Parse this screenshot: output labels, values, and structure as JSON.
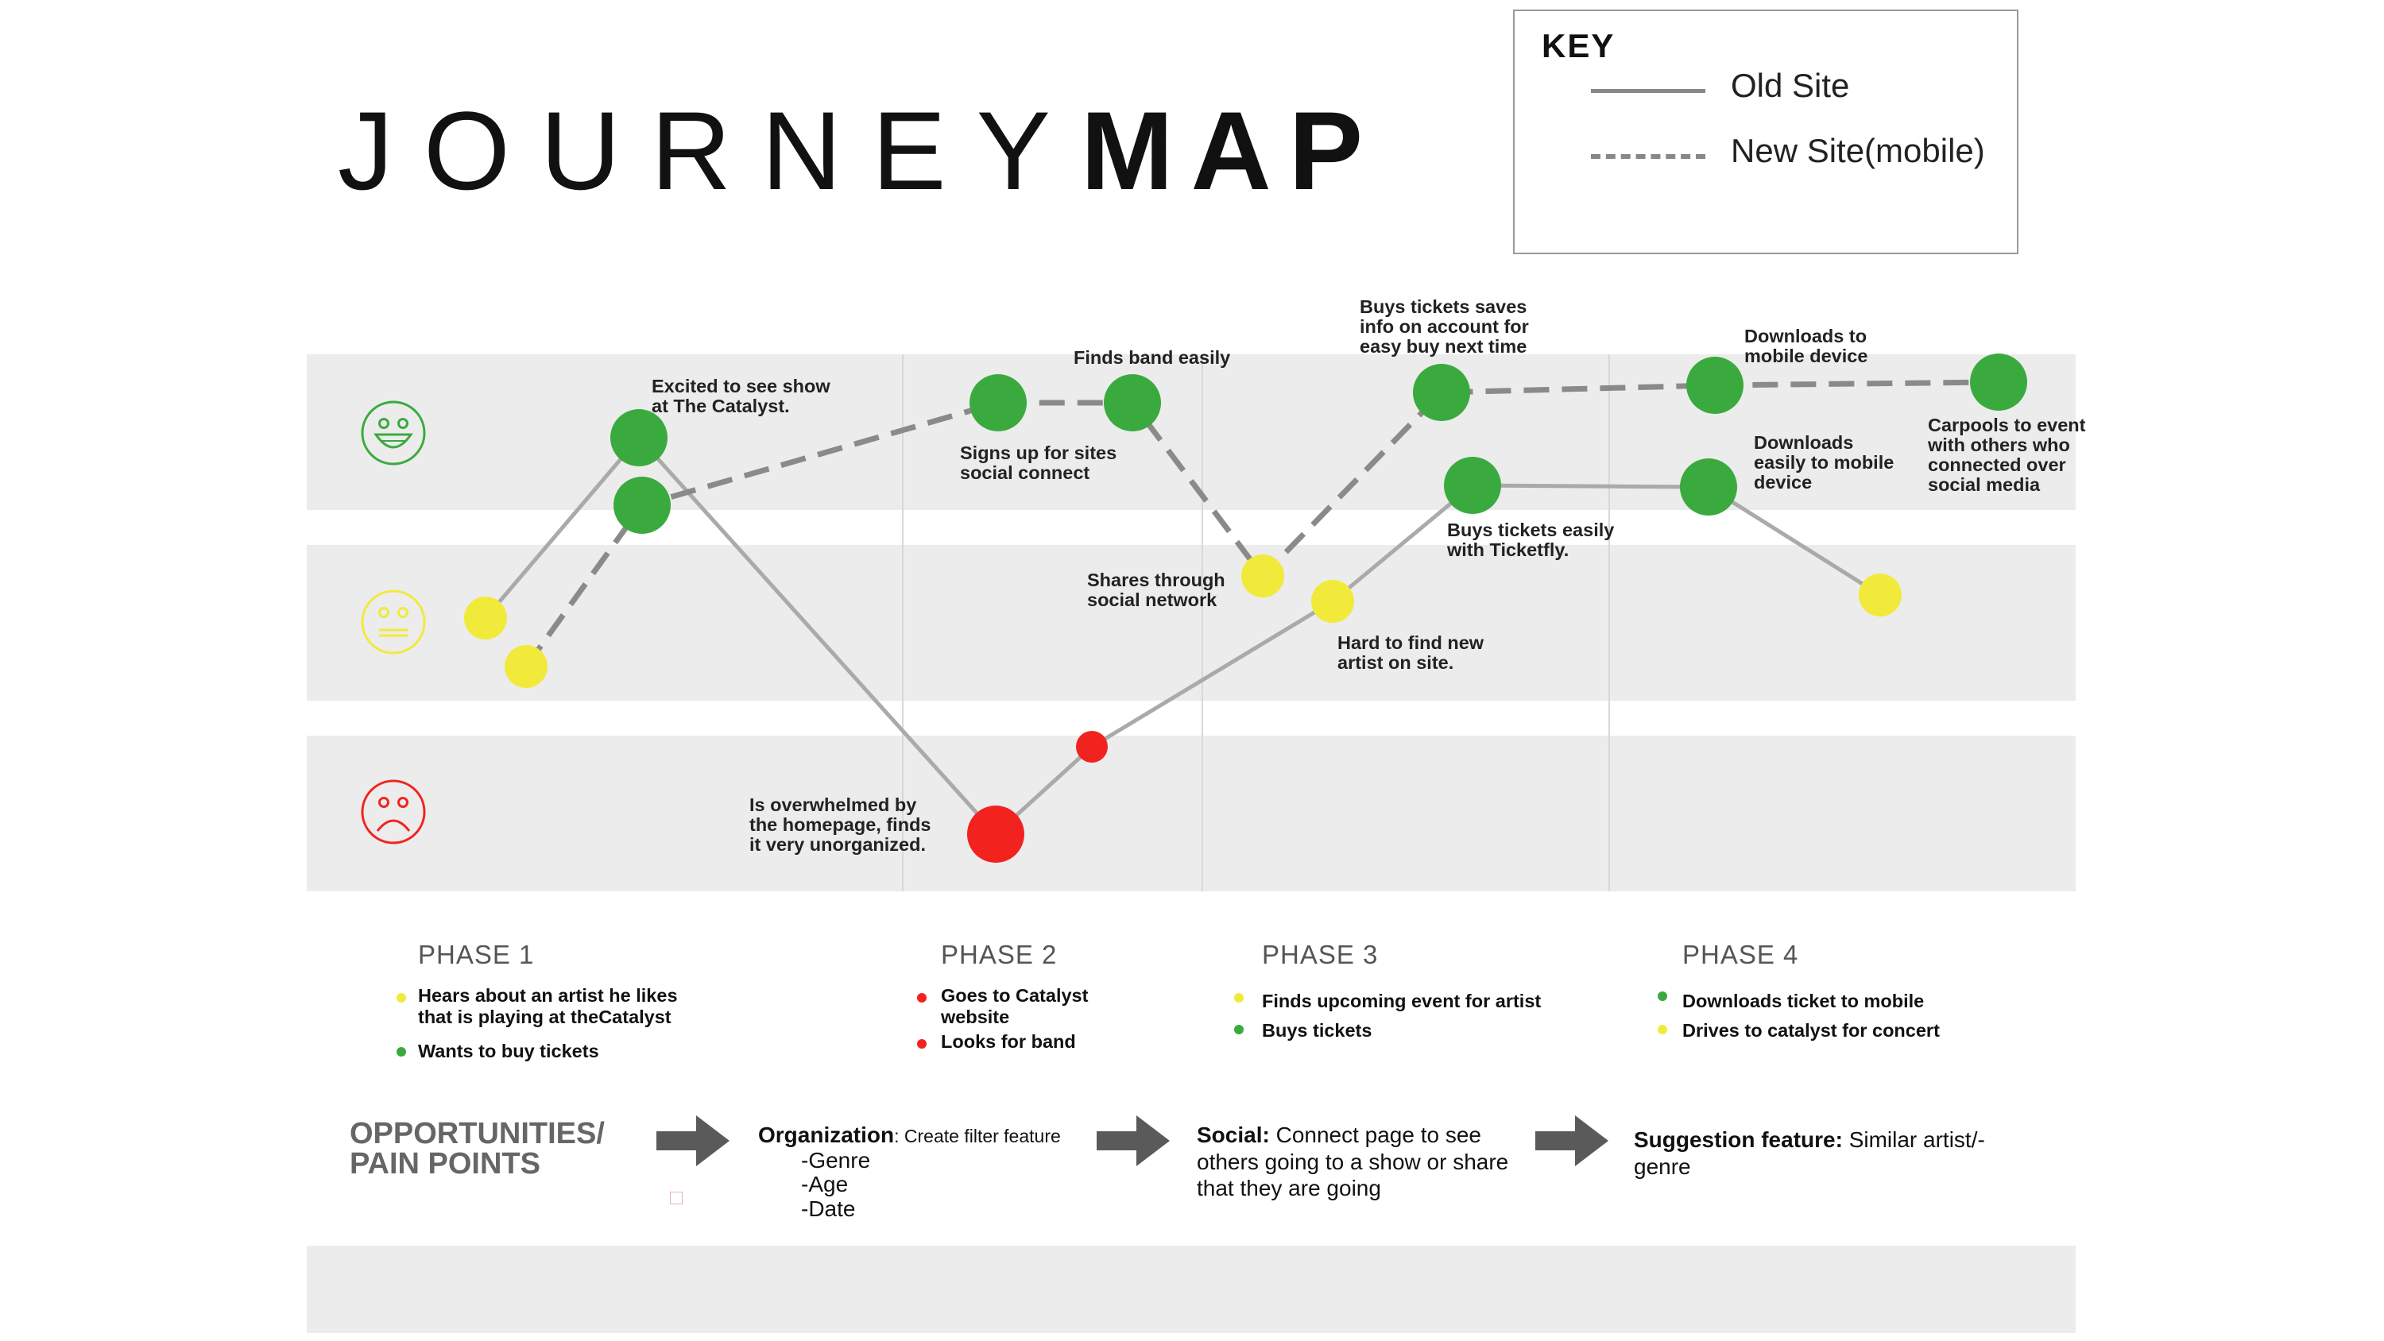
{
  "title": {
    "light": "JOURNEY",
    "bold": "MAP"
  },
  "key": {
    "title": "KEY",
    "old_site": "Old Site",
    "new_site": "New Site(mobile)"
  },
  "colors": {
    "green": "#3aaa3e",
    "yellow": "#f1ea3a",
    "red": "#f2231f",
    "line": "#aaaaaa",
    "dashed": "#8a8a8a",
    "band": "#ececec"
  },
  "faces": [
    "happy-face-icon",
    "neutral-face-icon",
    "sad-face-icon"
  ],
  "annotations": {
    "excited": [
      "Excited to see show",
      "at The Catalyst."
    ],
    "finds_band": [
      "Finds band easily"
    ],
    "signs_up": [
      "Signs up for sites",
      "social connect"
    ],
    "buys_saves": [
      "Buys tickets saves",
      "info on account for",
      "easy buy next time"
    ],
    "downloads_top": [
      "Downloads to",
      "mobile device"
    ],
    "downloads_mid": [
      "Downloads",
      "easily to mobile",
      "device"
    ],
    "carpools": [
      "Carpools to event",
      "with others who",
      "connected over",
      "social media"
    ],
    "shares": [
      "Shares through",
      "social network"
    ],
    "buys_easily": [
      "Buys tickets easily",
      "with Ticketfly."
    ],
    "hard_to_find": [
      "Hard to find new",
      "artist on site."
    ],
    "overwhelmed": [
      "Is overwhelmed by",
      "the homepage, finds",
      "it very unorganized."
    ]
  },
  "phases": [
    {
      "label": "PHASE 1",
      "items": [
        {
          "color": "yellow",
          "lines": [
            "Hears about an artist he likes",
            "that is playing at theCatalyst"
          ]
        },
        {
          "color": "green",
          "lines": [
            "Wants to buy tickets"
          ]
        }
      ]
    },
    {
      "label": "PHASE 2",
      "items": [
        {
          "color": "red",
          "lines": [
            "Goes to Catalyst",
            "website"
          ]
        },
        {
          "color": "red",
          "lines": [
            "Looks for band"
          ]
        }
      ]
    },
    {
      "label": "PHASE 3",
      "items": [
        {
          "color": "yellow",
          "lines": [
            "Finds upcoming event for artist"
          ]
        },
        {
          "color": "green",
          "lines": [
            "Buys tickets"
          ]
        }
      ]
    },
    {
      "label": "PHASE 4",
      "items": [
        {
          "color": "green",
          "lines": [
            "Downloads ticket to mobile"
          ]
        },
        {
          "color": "yellow",
          "lines": [
            "Drives to catalyst for concert"
          ]
        }
      ]
    }
  ],
  "opportunities": {
    "heading": [
      "OPPORTUNITIES/",
      "PAIN POINTS"
    ],
    "organization": {
      "label": "Organization",
      "text": ": Create filter feature",
      "items": [
        "-Genre",
        "-Age",
        "-Date"
      ]
    },
    "social": {
      "label": "Social:",
      "lines": [
        " Connect page to see",
        "others going to a show or share",
        "that they are going"
      ]
    },
    "suggestion": {
      "label": "Suggestion feature:",
      "lines": [
        " Similar artist/-",
        "genre"
      ]
    }
  },
  "journey": {
    "old_site": [
      {
        "step": "Hears about an artist",
        "mood": "neutral"
      },
      {
        "step": "Excited to see show at The Catalyst",
        "mood": "happy"
      },
      {
        "step": "Is overwhelmed by the homepage",
        "mood": "sad"
      },
      {
        "step": "Looks for band",
        "mood": "sad"
      },
      {
        "step": "Hard to find new artist on site",
        "mood": "neutral"
      },
      {
        "step": "Buys tickets easily with Ticketfly",
        "mood": "happy"
      },
      {
        "step": "Downloads easily to mobile device",
        "mood": "happy"
      },
      {
        "step": "Drives to catalyst for concert",
        "mood": "neutral"
      }
    ],
    "new_site": [
      {
        "step": "Hears about an artist",
        "mood": "neutral"
      },
      {
        "step": "Wants to buy tickets",
        "mood": "happy"
      },
      {
        "step": "Signs up for sites social connect",
        "mood": "happy"
      },
      {
        "step": "Finds band easily",
        "mood": "happy"
      },
      {
        "step": "Shares through social network",
        "mood": "neutral"
      },
      {
        "step": "Buys tickets saves info on account",
        "mood": "happy"
      },
      {
        "step": "Downloads to mobile device",
        "mood": "happy"
      },
      {
        "step": "Carpools to event",
        "mood": "happy"
      }
    ]
  }
}
